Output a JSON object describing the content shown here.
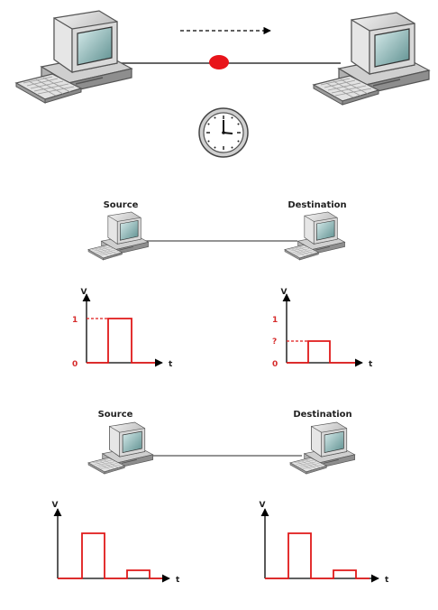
{
  "top_scene": {
    "clock_icon": "clock-icon",
    "signal_dot_color": "#e8141a",
    "arrow_direction": "left-to-right"
  },
  "middle_scene": {
    "source_label": "Source",
    "destination_label": "Destination",
    "source_plot": {
      "y_axis_label": "V",
      "x_axis_label": "t",
      "y_ticks": [
        "1",
        "0"
      ],
      "pulse_level": 1,
      "pulse_color": "#e01919"
    },
    "destination_plot": {
      "y_axis_label": "V",
      "x_axis_label": "t",
      "y_ticks": [
        "1",
        "?",
        "0"
      ],
      "pulse_level": 0.45,
      "pulse_color": "#e01919"
    }
  },
  "bottom_scene": {
    "source_label": "Source",
    "destination_label": "Destination",
    "source_plot": {
      "y_axis_label": "V",
      "x_axis_label": "t",
      "pulses": [
        1,
        0.2
      ]
    },
    "destination_plot": {
      "y_axis_label": "V",
      "x_axis_label": "t",
      "pulses": [
        1,
        0.2
      ]
    }
  },
  "colors": {
    "axis": "#000000",
    "signal": "#e01919",
    "link": "#555555"
  }
}
